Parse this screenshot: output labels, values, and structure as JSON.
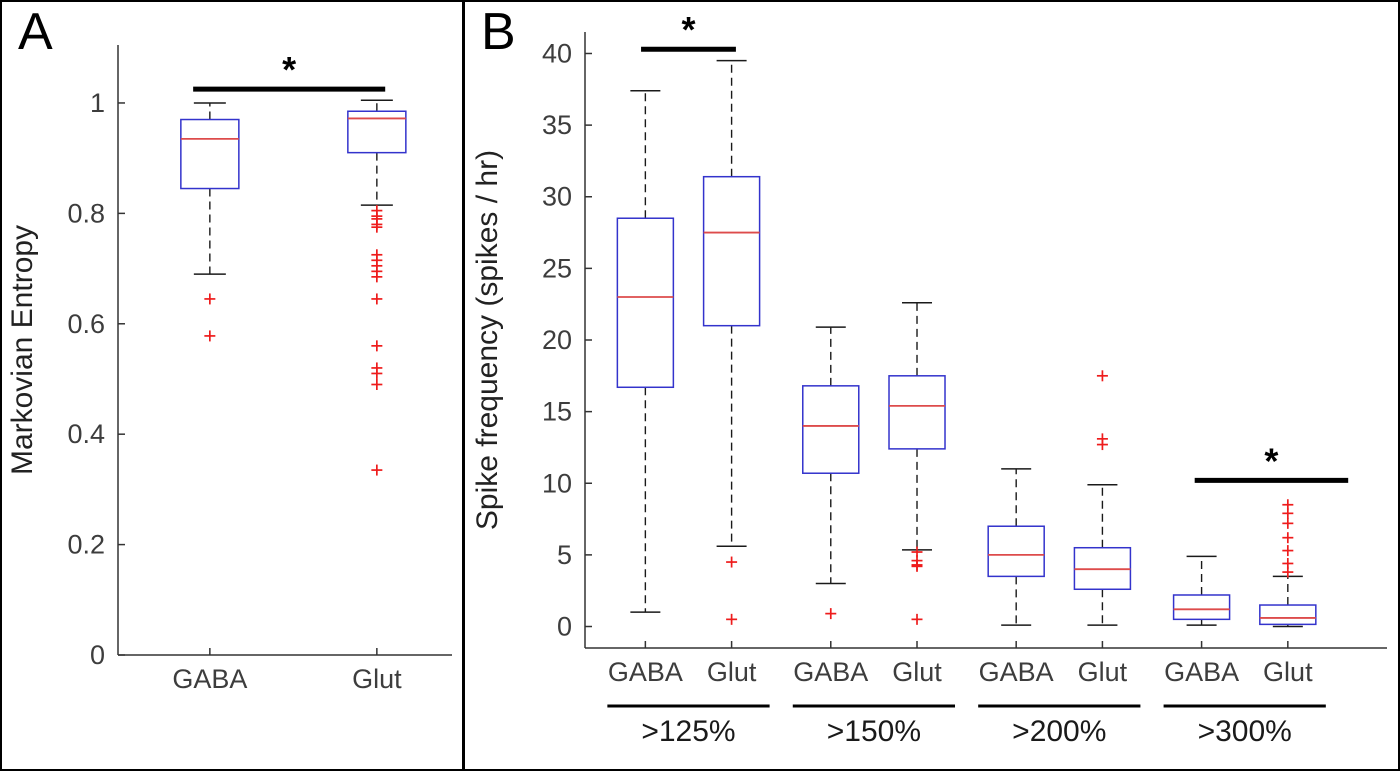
{
  "figure": {
    "background": "#ffffff",
    "border_color": "#000000"
  },
  "colors": {
    "box": "#3333cc",
    "median": "#dd4b4b",
    "outlier": "#ee1c1c",
    "whisker": "#1a1a1a",
    "axis": "#333333",
    "text": "#3d3d3d",
    "sig": "#000000"
  },
  "chart_data": [
    {
      "type": "boxplot",
      "panel_label": "A",
      "ylabel": "Markovian Entropy",
      "ylim": [
        0,
        1.105
      ],
      "yticks": [
        0,
        0.2,
        0.4,
        0.6,
        0.8,
        1
      ],
      "ytick_labels": [
        "0",
        "0.2",
        "0.4",
        "0.6",
        "0.8",
        "1"
      ],
      "xlim": [
        0.45,
        2.45
      ],
      "positions": [
        1,
        2
      ],
      "categories": [
        "GABA",
        "Glut"
      ],
      "series": [
        {
          "name": "GABA",
          "q1": 0.845,
          "median": 0.935,
          "q3": 0.97,
          "whisker_low": 0.69,
          "whisker_high": 1.0,
          "outliers": [
            0.645,
            0.578
          ]
        },
        {
          "name": "Glut",
          "q1": 0.91,
          "median": 0.972,
          "q3": 0.985,
          "whisker_low": 0.815,
          "whisker_high": 1.005,
          "outliers": [
            0.805,
            0.795,
            0.79,
            0.78,
            0.775,
            0.725,
            0.715,
            0.705,
            0.695,
            0.685,
            0.645,
            0.56,
            0.52,
            0.51,
            0.49,
            0.335
          ]
        }
      ],
      "significance": [
        {
          "x1": 0.9,
          "x2": 2.05,
          "y": 1.025,
          "label": "*"
        }
      ],
      "group_labels": []
    },
    {
      "type": "boxplot",
      "panel_label": "B",
      "ylabel": "Spike frequency (spikes / hr)",
      "ylim": [
        -1.5,
        41.5
      ],
      "yticks": [
        0,
        5,
        10,
        15,
        20,
        25,
        30,
        35,
        40
      ],
      "ytick_labels": [
        "0",
        "5",
        "10",
        "15",
        "20",
        "25",
        "30",
        "35",
        "40"
      ],
      "xlim": [
        0.3,
        9.6
      ],
      "positions": [
        1,
        2,
        3.15,
        4.15,
        5.3,
        6.3,
        7.45,
        8.45
      ],
      "categories": [
        "GABA",
        "Glut",
        "GABA",
        "Glut",
        "GABA",
        "Glut",
        "GABA",
        "Glut"
      ],
      "series": [
        {
          "name": "GABA >125%",
          "q1": 16.7,
          "median": 23.0,
          "q3": 28.5,
          "whisker_low": 1.0,
          "whisker_high": 37.4,
          "outliers": []
        },
        {
          "name": "Glut >125%",
          "q1": 21.0,
          "median": 27.5,
          "q3": 31.4,
          "whisker_low": 5.6,
          "whisker_high": 39.5,
          "outliers": [
            4.5,
            0.5
          ]
        },
        {
          "name": "GABA >150%",
          "q1": 10.7,
          "median": 14.0,
          "q3": 16.8,
          "whisker_low": 3.0,
          "whisker_high": 20.9,
          "outliers": [
            0.9
          ]
        },
        {
          "name": "Glut >150%",
          "q1": 12.4,
          "median": 15.4,
          "q3": 17.5,
          "whisker_low": 5.35,
          "whisker_high": 22.6,
          "outliers": [
            5.2,
            4.6,
            4.3,
            4.2,
            0.5
          ]
        },
        {
          "name": "GABA >200%",
          "q1": 3.5,
          "median": 5.0,
          "q3": 7.0,
          "whisker_low": 0.1,
          "whisker_high": 11.0,
          "outliers": []
        },
        {
          "name": "Glut >200%",
          "q1": 2.6,
          "median": 4.0,
          "q3": 5.5,
          "whisker_low": 0.1,
          "whisker_high": 9.9,
          "outliers": [
            17.5,
            13.1,
            12.7
          ]
        },
        {
          "name": "GABA >300%",
          "q1": 0.5,
          "median": 1.2,
          "q3": 2.2,
          "whisker_low": 0.1,
          "whisker_high": 4.9,
          "outliers": []
        },
        {
          "name": "Glut >300%",
          "q1": 0.15,
          "median": 0.6,
          "q3": 1.5,
          "whisker_low": 0.0,
          "whisker_high": 3.5,
          "outliers": [
            8.5,
            7.9,
            7.2,
            6.2,
            5.3,
            4.4,
            3.8
          ]
        }
      ],
      "significance": [
        {
          "x1": 0.95,
          "x2": 2.05,
          "y": 40.3,
          "label": "*"
        },
        {
          "x1": 7.37,
          "x2": 9.15,
          "y": 10.2,
          "label": "*"
        }
      ],
      "group_labels": [
        {
          "label": ">125%",
          "x1": 1,
          "x2": 2
        },
        {
          "label": ">150%",
          "x1": 3.15,
          "x2": 4.15
        },
        {
          "label": ">200%",
          "x1": 5.3,
          "x2": 6.3
        },
        {
          "label": ">300%",
          "x1": 7.45,
          "x2": 8.45
        }
      ]
    }
  ]
}
